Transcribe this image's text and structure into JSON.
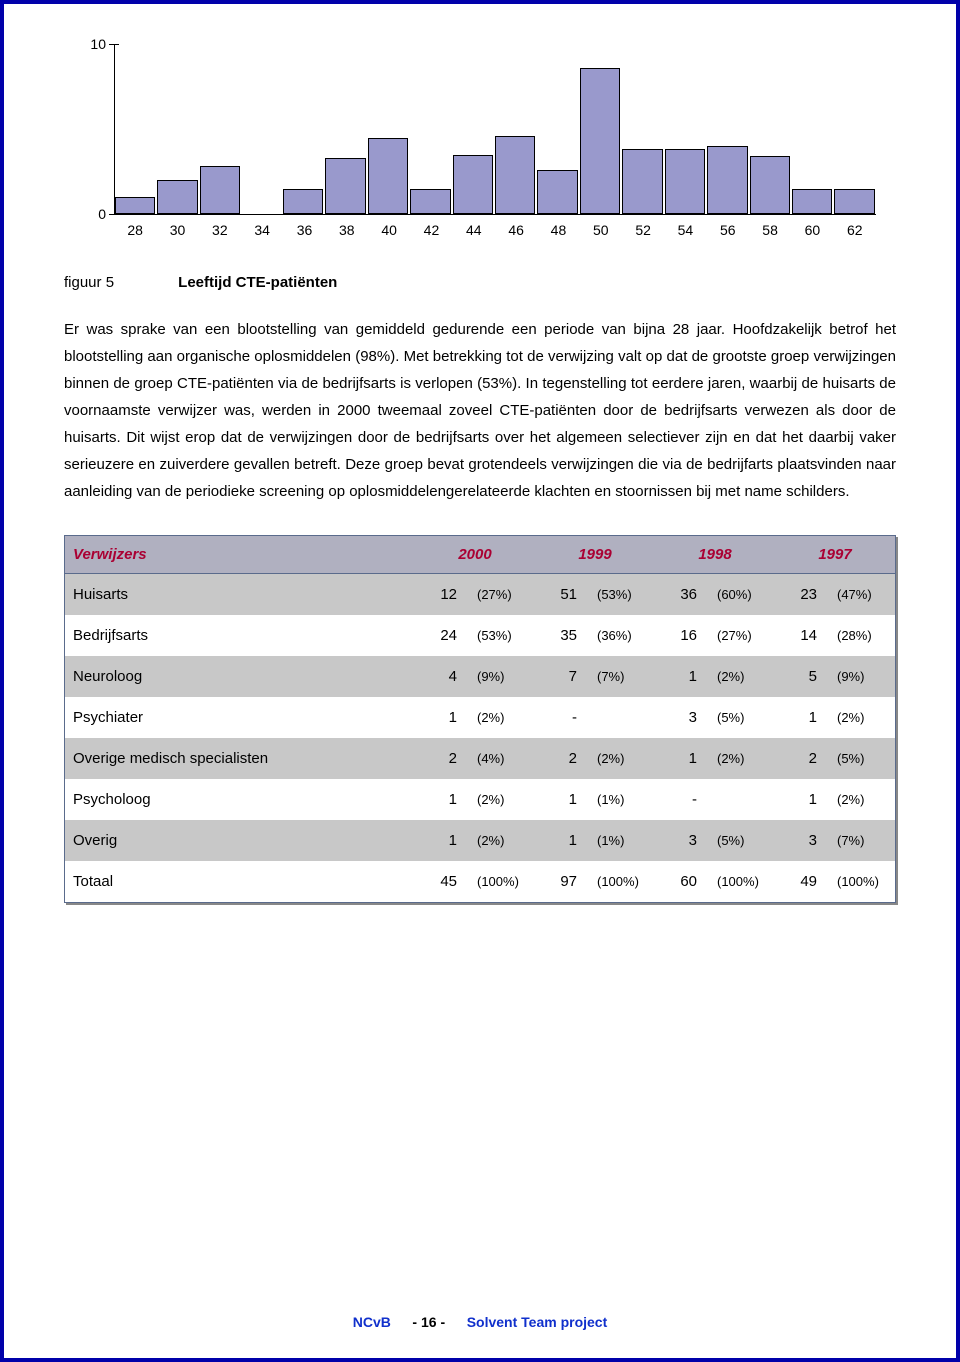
{
  "chart": {
    "type": "bar",
    "y_max": 10,
    "y_ticks": [
      0,
      10
    ],
    "bar_color": "#9999cc",
    "bar_border": "#000000",
    "categories": [
      "28",
      "30",
      "32",
      "34",
      "36",
      "38",
      "40",
      "42",
      "44",
      "46",
      "48",
      "50",
      "52",
      "54",
      "56",
      "58",
      "60",
      "62"
    ],
    "values": [
      1.0,
      2.0,
      2.8,
      0,
      1.5,
      3.3,
      4.5,
      1.5,
      3.5,
      4.6,
      2.6,
      8.6,
      3.8,
      3.8,
      4.0,
      3.4,
      1.5,
      1.5
    ],
    "axis_font": 14
  },
  "caption": {
    "fig": "figuur 5",
    "title": "Leeftijd CTE-patiënten"
  },
  "body": "Er was sprake van een blootstelling van gemiddeld gedurende een periode van bijna 28 jaar. Hoofdzakelijk betrof het blootstelling aan organische oplosmiddelen (98%). Met betrekking tot de verwijzing valt op dat de grootste groep verwijzingen binnen de groep CTE-patiënten via de bedrijfsarts is verlopen (53%). In tegenstelling tot eerdere jaren, waarbij de huisarts de voornaamste verwijzer was, werden in 2000 tweemaal zoveel CTE-patiënten door de bedrijfsarts verwezen als door de huisarts. Dit wijst erop dat de verwijzingen door de bedrijfsarts over het algemeen selectiever zijn en dat het daarbij vaker serieuzere en zuiverdere gevallen betreft. Deze groep bevat grotendeels verwijzingen die via de bedrijfarts plaatsvinden naar aanleiding van de periodieke screening op oplosmiddelengerelateerde klachten en stoornissen bij met name schilders.",
  "table": {
    "header_label": "Verwijzers",
    "years": [
      "2000",
      "1999",
      "1998",
      "1997"
    ],
    "header_bg": "#b0b0c0",
    "header_color": "#aa0033",
    "shade_bg": "#c8c8c8",
    "border_color": "#5a6b8c",
    "rows": [
      {
        "label": "Huisarts",
        "shade": true,
        "cells": [
          [
            "12",
            "(27%)"
          ],
          [
            "51",
            "(53%)"
          ],
          [
            "36",
            "(60%)"
          ],
          [
            "23",
            "(47%)"
          ]
        ]
      },
      {
        "label": "Bedrijfsarts",
        "shade": false,
        "cells": [
          [
            "24",
            "(53%)"
          ],
          [
            "35",
            "(36%)"
          ],
          [
            "16",
            "(27%)"
          ],
          [
            "14",
            "(28%)"
          ]
        ]
      },
      {
        "label": "Neuroloog",
        "shade": true,
        "cells": [
          [
            "4",
            "(9%)"
          ],
          [
            "7",
            "(7%)"
          ],
          [
            "1",
            "(2%)"
          ],
          [
            "5",
            "(9%)"
          ]
        ]
      },
      {
        "label": "Psychiater",
        "shade": false,
        "cells": [
          [
            "1",
            "(2%)"
          ],
          [
            "-",
            ""
          ],
          [
            "3",
            "(5%)"
          ],
          [
            "1",
            "(2%)"
          ]
        ]
      },
      {
        "label": "Overige medisch specialisten",
        "shade": true,
        "cells": [
          [
            "2",
            "(4%)"
          ],
          [
            "2",
            "(2%)"
          ],
          [
            "1",
            "(2%)"
          ],
          [
            "2",
            "(5%)"
          ]
        ]
      },
      {
        "label": "Psycholoog",
        "shade": false,
        "cells": [
          [
            "1",
            "(2%)"
          ],
          [
            "1",
            "(1%)"
          ],
          [
            "-",
            ""
          ],
          [
            "1",
            "(2%)"
          ]
        ]
      },
      {
        "label": "Overig",
        "shade": true,
        "cells": [
          [
            "1",
            "(2%)"
          ],
          [
            "1",
            "(1%)"
          ],
          [
            "3",
            "(5%)"
          ],
          [
            "3",
            "(7%)"
          ]
        ]
      },
      {
        "label": "Totaal",
        "shade": false,
        "cells": [
          [
            "45",
            "(100%)"
          ],
          [
            "97",
            "(100%)"
          ],
          [
            "60",
            "(100%)"
          ],
          [
            "49",
            "(100%)"
          ]
        ]
      }
    ]
  },
  "footer": {
    "left": "NCvB",
    "page_prefix": "-",
    "page": "16",
    "page_suffix": "-",
    "right": "Solvent Team project"
  }
}
